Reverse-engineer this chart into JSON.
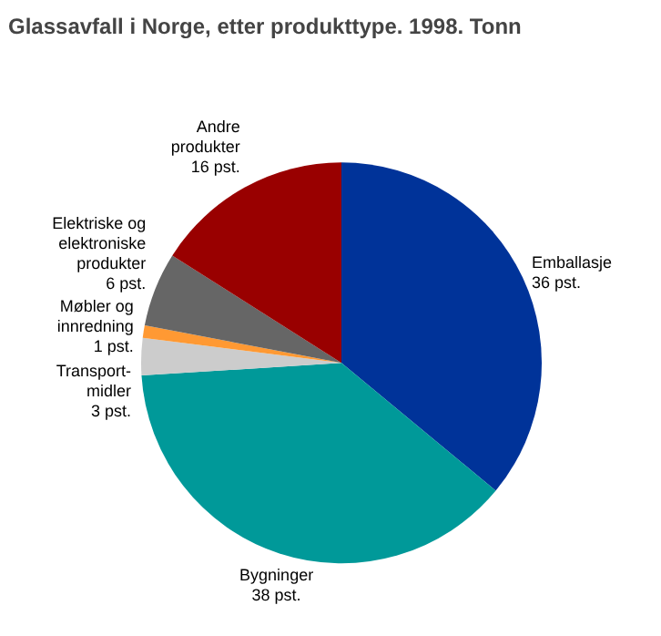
{
  "chart_data": {
    "type": "pie",
    "title": "Glassavfall i Norge, etter produkttype. 1998. Tonn",
    "categories": [
      "Emballasje",
      "Bygninger",
      "Transport-\nmidler",
      "Møbler og\ninnredning",
      "Elektriske og\nelektroniske\nprodukter",
      "Andre\nprodukter"
    ],
    "values": [
      36,
      38,
      3,
      1,
      6,
      16
    ],
    "value_labels": [
      "36 pst.",
      "38 pst.",
      "3 pst.",
      "1 pst.",
      "6 pst.",
      "16 pst."
    ],
    "colors": [
      "#003399",
      "#009999",
      "#cccccc",
      "#ff9933",
      "#666666",
      "#990000"
    ]
  }
}
